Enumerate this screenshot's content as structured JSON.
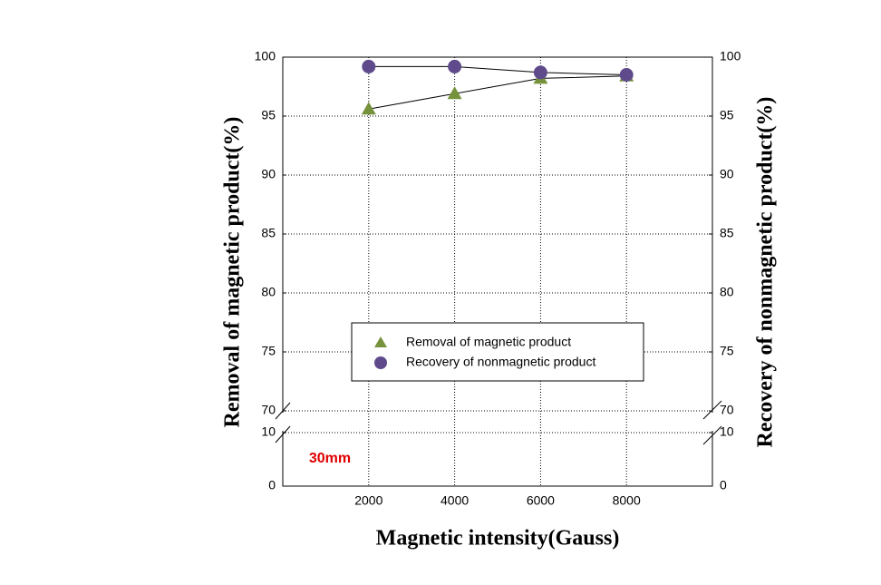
{
  "chart_data": {
    "type": "line",
    "x_label": "Magnetic intensity(Gauss)",
    "y_label": "Removal of magnetic product(%)",
    "y2_label": "Recovery of nonmagnetic product(%)",
    "annotation": "30mm",
    "x": [
      2000,
      4000,
      6000,
      8000
    ],
    "xlim": [
      0,
      10000
    ],
    "xticks": [
      2000,
      4000,
      6000,
      8000
    ],
    "y_segments": [
      {
        "ylim": [
          70,
          100
        ],
        "yticks": [
          70,
          75,
          80,
          85,
          90,
          95,
          100
        ]
      },
      {
        "ylim": [
          0,
          10
        ],
        "yticks": [
          0,
          10
        ]
      }
    ],
    "y2_segments": [
      {
        "ylim": [
          70,
          100
        ],
        "yticks": [
          70,
          75,
          80,
          85,
          90,
          95,
          100
        ]
      },
      {
        "ylim": [
          0,
          10
        ],
        "yticks": [
          0,
          10
        ]
      }
    ],
    "grid": true,
    "series": [
      {
        "name": "Removal of magnetic product",
        "color": "#76923c",
        "marker": "triangle",
        "values": [
          95.6,
          96.9,
          98.2,
          98.4
        ]
      },
      {
        "name": "Recovery of nonmagnetic product",
        "color": "#5f4b8b",
        "marker": "circle",
        "axis": "y2",
        "values": [
          99.2,
          99.2,
          98.7,
          98.5
        ]
      }
    ]
  }
}
